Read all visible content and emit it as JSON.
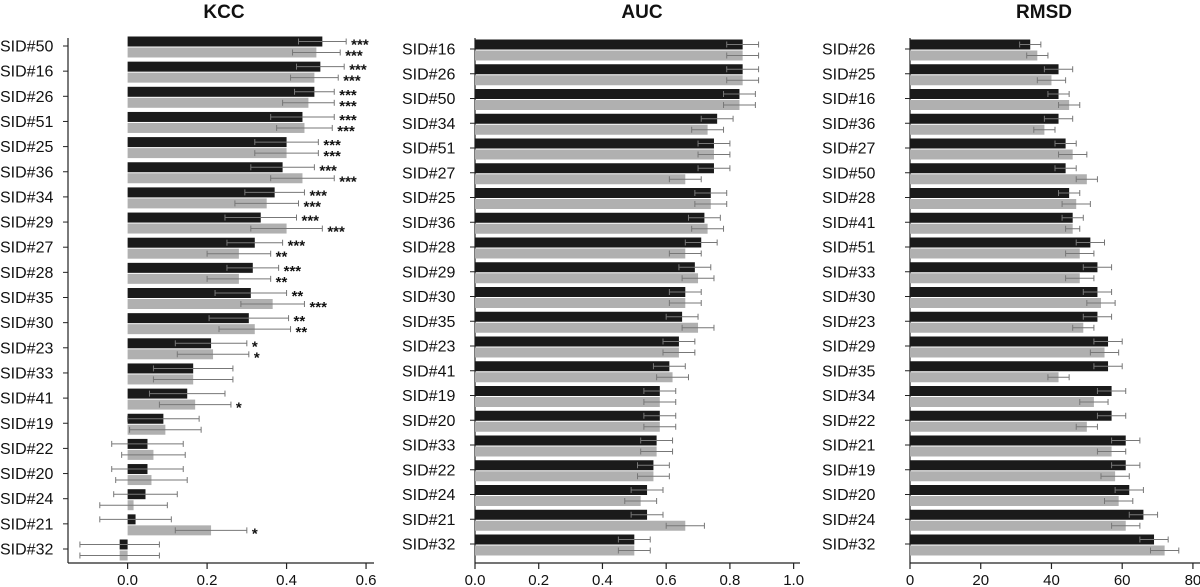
{
  "colors": {
    "series_dark": "#1a1a1a",
    "series_light": "#b0b0b0",
    "axis": "#222222",
    "error_bar": "#777777"
  },
  "chart_data": [
    {
      "type": "bar",
      "orientation": "horizontal",
      "title": "KCC",
      "xlim": [
        -0.15,
        0.62
      ],
      "xticks": [
        "0.0",
        "0.2",
        "0.4",
        "0.6"
      ],
      "categories": [
        "SID#50",
        "SID#16",
        "SID#26",
        "SID#51",
        "SID#25",
        "SID#36",
        "SID#34",
        "SID#29",
        "SID#27",
        "SID#28",
        "SID#35",
        "SID#30",
        "SID#23",
        "SID#33",
        "SID#41",
        "SID#19",
        "SID#22",
        "SID#20",
        "SID#24",
        "SID#21",
        "SID#32"
      ],
      "series": [
        {
          "values": [
            0.49,
            0.485,
            0.47,
            0.44,
            0.4,
            0.39,
            0.37,
            0.335,
            0.32,
            0.315,
            0.31,
            0.305,
            0.21,
            0.165,
            0.15,
            0.09,
            0.05,
            0.05,
            0.045,
            0.02,
            -0.02
          ],
          "errors": [
            0.06,
            0.06,
            0.05,
            0.08,
            0.08,
            0.08,
            0.075,
            0.09,
            0.07,
            0.065,
            0.09,
            0.1,
            0.09,
            0.1,
            0.095,
            0.09,
            0.09,
            0.09,
            0.08,
            0.09,
            0.1
          ],
          "significance": [
            "***",
            "***",
            "***",
            "***",
            "***",
            "***",
            "***",
            "***",
            "***",
            "***",
            "**",
            "**",
            "*",
            "",
            "",
            "",
            "",
            "",
            "",
            "",
            ""
          ]
        },
        {
          "values": [
            0.475,
            0.47,
            0.455,
            0.445,
            0.4,
            0.44,
            0.35,
            0.4,
            0.28,
            0.28,
            0.365,
            0.32,
            0.215,
            0.165,
            0.17,
            0.095,
            0.065,
            0.06,
            0.015,
            0.21,
            -0.02
          ],
          "errors": [
            0.06,
            0.06,
            0.065,
            0.07,
            0.08,
            0.08,
            0.08,
            0.09,
            0.08,
            0.08,
            0.08,
            0.09,
            0.09,
            0.1,
            0.09,
            0.09,
            0.08,
            0.09,
            0.085,
            0.09,
            0.1
          ],
          "significance": [
            "***",
            "***",
            "***",
            "***",
            "***",
            "***",
            "***",
            "***",
            "**",
            "**",
            "***",
            "**",
            "*",
            "",
            "*",
            "",
            "",
            "",
            "",
            "*",
            ""
          ]
        }
      ]
    },
    {
      "type": "bar",
      "orientation": "horizontal",
      "title": "AUC",
      "xlim": [
        0,
        1.02
      ],
      "xticks": [
        "0.0",
        "0.2",
        "0.4",
        "0.6",
        "0.8",
        "1.0"
      ],
      "categories": [
        "SID#16",
        "SID#26",
        "SID#50",
        "SID#34",
        "SID#51",
        "SID#27",
        "SID#25",
        "SID#36",
        "SID#28",
        "SID#29",
        "SID#30",
        "SID#35",
        "SID#23",
        "SID#41",
        "SID#19",
        "SID#20",
        "SID#33",
        "SID#22",
        "SID#24",
        "SID#21",
        "SID#32"
      ],
      "series": [
        {
          "values": [
            0.84,
            0.84,
            0.83,
            0.76,
            0.75,
            0.75,
            0.74,
            0.72,
            0.71,
            0.69,
            0.66,
            0.65,
            0.64,
            0.61,
            0.58,
            0.58,
            0.57,
            0.56,
            0.54,
            0.54,
            0.5
          ],
          "errors": [
            0.05,
            0.05,
            0.05,
            0.05,
            0.05,
            0.05,
            0.05,
            0.05,
            0.05,
            0.05,
            0.05,
            0.05,
            0.05,
            0.05,
            0.05,
            0.05,
            0.05,
            0.05,
            0.05,
            0.05,
            0.05
          ]
        },
        {
          "values": [
            0.84,
            0.84,
            0.83,
            0.73,
            0.75,
            0.66,
            0.74,
            0.73,
            0.66,
            0.7,
            0.66,
            0.7,
            0.64,
            0.62,
            0.58,
            0.58,
            0.57,
            0.56,
            0.52,
            0.66,
            0.5
          ],
          "errors": [
            0.05,
            0.05,
            0.05,
            0.05,
            0.05,
            0.05,
            0.05,
            0.05,
            0.05,
            0.05,
            0.05,
            0.05,
            0.05,
            0.05,
            0.05,
            0.05,
            0.05,
            0.05,
            0.05,
            0.06,
            0.05
          ]
        }
      ]
    },
    {
      "type": "bar",
      "orientation": "horizontal",
      "title": "RMSD",
      "xlim": [
        0,
        82
      ],
      "xticks": [
        "0",
        "20",
        "40",
        "60",
        "80"
      ],
      "categories": [
        "SID#26",
        "SID#25",
        "SID#16",
        "SID#36",
        "SID#27",
        "SID#50",
        "SID#28",
        "SID#41",
        "SID#51",
        "SID#33",
        "SID#30",
        "SID#23",
        "SID#29",
        "SID#35",
        "SID#34",
        "SID#22",
        "SID#21",
        "SID#19",
        "SID#20",
        "SID#24",
        "SID#32"
      ],
      "series": [
        {
          "values": [
            34,
            42,
            42,
            42,
            44,
            44,
            45,
            46,
            51,
            53,
            53,
            53,
            56,
            56,
            57,
            57,
            61,
            61,
            62,
            66,
            69
          ],
          "errors": [
            3,
            4,
            3,
            4,
            3,
            3,
            3,
            3,
            4,
            4,
            4,
            4,
            4,
            4,
            4,
            4,
            4,
            4,
            4,
            4,
            4
          ]
        },
        {
          "values": [
            36,
            40,
            45,
            38,
            46,
            50,
            47,
            46,
            48,
            48,
            54,
            49,
            55,
            42,
            52,
            50,
            57,
            58,
            59,
            61,
            72
          ],
          "errors": [
            3,
            4,
            3,
            3,
            4,
            3,
            4,
            2,
            4,
            4,
            4,
            3,
            4,
            3,
            4,
            3,
            4,
            4,
            4,
            4,
            4
          ]
        }
      ]
    }
  ]
}
